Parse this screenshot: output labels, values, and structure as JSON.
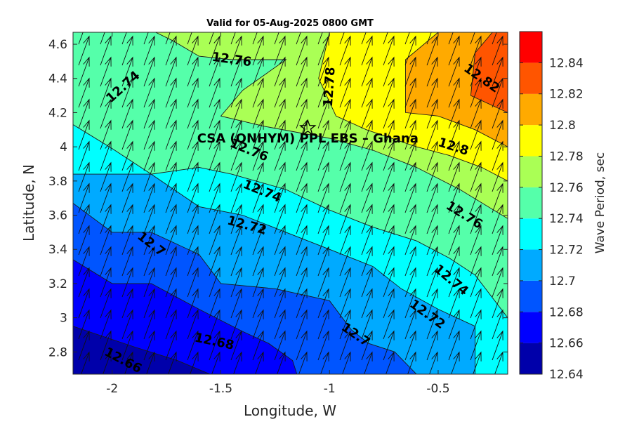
{
  "chart_data": {
    "type": "filled-contour with wave-direction vectors",
    "title": "Valid for 05-Aug-2025 0800 GMT",
    "xlabel": "Longitude, W",
    "ylabel": "Latitude, N",
    "xlim": [
      -2.18,
      -0.18
    ],
    "ylim": [
      2.67,
      4.67
    ],
    "xticks": [
      -2,
      -1.5,
      -1,
      -0.5
    ],
    "xtick_labels": [
      "-2",
      "-1.5",
      "-1",
      "-0.5"
    ],
    "yticks": [
      2.8,
      3.0,
      3.2,
      3.4,
      3.6,
      3.8,
      4.0,
      4.2,
      4.4,
      4.6
    ],
    "ytick_labels": [
      "2.8",
      "3",
      "3.2",
      "3.4",
      "3.6",
      "3.8",
      "4",
      "4.2",
      "4.4",
      "4.6"
    ],
    "colorbar": {
      "label": "Wave Period, sec",
      "min": 12.64,
      "max": 12.86,
      "levels": [
        12.64,
        12.66,
        12.68,
        12.7,
        12.72,
        12.74,
        12.76,
        12.78,
        12.8,
        12.82,
        12.84,
        12.86
      ],
      "tick_values": [
        12.64,
        12.66,
        12.68,
        12.7,
        12.72,
        12.74,
        12.76,
        12.78,
        12.8,
        12.82,
        12.84
      ],
      "tick_labels": [
        "12.64",
        "12.66",
        "12.68",
        "12.7",
        "12.72",
        "12.74",
        "12.76",
        "12.78",
        "12.8",
        "12.82",
        "12.84"
      ],
      "colors": [
        "#0000aa",
        "#0000ff",
        "#0055ff",
        "#00aaff",
        "#00ffff",
        "#55ffaa",
        "#aaff55",
        "#ffff00",
        "#ffaa00",
        "#ff5500",
        "#ff0000"
      ]
    },
    "contours": [
      {
        "level": 12.66,
        "points": [
          [
            -2.18,
            2.95
          ],
          [
            -1.9,
            2.83
          ],
          [
            -1.7,
            2.75
          ],
          [
            -1.55,
            2.67
          ]
        ]
      },
      {
        "level": 12.68,
        "points": [
          [
            -2.18,
            3.34
          ],
          [
            -2.0,
            3.2
          ],
          [
            -1.82,
            3.2
          ],
          [
            -1.6,
            3.05
          ],
          [
            -1.4,
            2.92
          ],
          [
            -1.28,
            2.85
          ],
          [
            -1.17,
            2.75
          ],
          [
            -1.15,
            2.67
          ]
        ]
      },
      {
        "level": 12.7,
        "points": [
          [
            -2.18,
            3.67
          ],
          [
            -2.0,
            3.5
          ],
          [
            -1.82,
            3.5
          ],
          [
            -1.6,
            3.37
          ],
          [
            -1.5,
            3.2
          ],
          [
            -1.25,
            3.17
          ],
          [
            -1.0,
            3.1
          ],
          [
            -0.9,
            2.93
          ],
          [
            -0.82,
            2.85
          ],
          [
            -0.7,
            2.8
          ],
          [
            -0.6,
            2.67
          ]
        ]
      },
      {
        "level": 12.72,
        "points": [
          [
            -2.18,
            3.84
          ],
          [
            -2.0,
            3.84
          ],
          [
            -1.82,
            3.84
          ],
          [
            -1.6,
            3.65
          ],
          [
            -1.4,
            3.6
          ],
          [
            -1.2,
            3.5
          ],
          [
            -1.0,
            3.4
          ],
          [
            -0.8,
            3.3
          ],
          [
            -0.67,
            3.17
          ],
          [
            -0.5,
            3.05
          ],
          [
            -0.33,
            2.95
          ],
          [
            -0.33,
            2.67
          ]
        ]
      },
      {
        "level": 12.74,
        "points": [
          [
            -2.18,
            4.13
          ],
          [
            -2.0,
            3.99
          ],
          [
            -1.82,
            3.84
          ],
          [
            -1.6,
            3.88
          ],
          [
            -1.45,
            3.84
          ],
          [
            -1.2,
            3.75
          ],
          [
            -1.0,
            3.63
          ],
          [
            -0.8,
            3.53
          ],
          [
            -0.6,
            3.45
          ],
          [
            -0.45,
            3.35
          ],
          [
            -0.33,
            3.25
          ],
          [
            -0.18,
            3.0
          ]
        ]
      },
      {
        "level": 12.76,
        "points": [
          [
            -1.8,
            4.67
          ],
          [
            -1.72,
            4.62
          ],
          [
            -1.6,
            4.53
          ],
          [
            -1.45,
            4.51
          ],
          [
            -1.2,
            4.51
          ],
          [
            -1.4,
            4.33
          ],
          [
            -1.5,
            4.18
          ],
          [
            -1.3,
            4.12
          ],
          [
            -1.0,
            4.05
          ],
          [
            -0.8,
            3.98
          ],
          [
            -0.6,
            3.88
          ],
          [
            -0.4,
            3.75
          ],
          [
            -0.18,
            3.58
          ]
        ]
      },
      {
        "level": 12.78,
        "points": [
          [
            -1.0,
            4.67
          ],
          [
            -1.05,
            4.4
          ],
          [
            -0.97,
            4.18
          ],
          [
            -0.83,
            4.1
          ],
          [
            -0.6,
            4.0
          ],
          [
            -0.45,
            3.95
          ],
          [
            -0.3,
            3.88
          ],
          [
            -0.18,
            3.8
          ]
        ]
      },
      {
        "level": 12.8,
        "points": [
          [
            -0.5,
            4.67
          ],
          [
            -0.65,
            4.51
          ],
          [
            -0.65,
            4.2
          ],
          [
            -0.5,
            4.18
          ],
          [
            -0.33,
            4.1
          ],
          [
            -0.18,
            4.0
          ]
        ]
      },
      {
        "level": 12.82,
        "points": [
          [
            -0.25,
            4.67
          ],
          [
            -0.33,
            4.55
          ],
          [
            -0.35,
            4.3
          ],
          [
            -0.18,
            4.2
          ]
        ]
      }
    ],
    "contour_labels": [
      {
        "text": "12.66",
        "x": -1.95,
        "y": 2.75,
        "angle": 28
      },
      {
        "text": "12.68",
        "x": -1.53,
        "y": 2.86,
        "angle": 12
      },
      {
        "text": "12.7",
        "x": -1.82,
        "y": 3.43,
        "angle": 38
      },
      {
        "text": "12.7",
        "x": -0.88,
        "y": 2.9,
        "angle": 35
      },
      {
        "text": "12.72",
        "x": -1.38,
        "y": 3.54,
        "angle": 15
      },
      {
        "text": "12.72",
        "x": -0.55,
        "y": 3.02,
        "angle": 36
      },
      {
        "text": "12.74",
        "x": -1.95,
        "y": 4.35,
        "angle": -42
      },
      {
        "text": "12.74",
        "x": -1.31,
        "y": 3.74,
        "angle": 22
      },
      {
        "text": "12.74",
        "x": -0.44,
        "y": 3.22,
        "angle": 40
      },
      {
        "text": "12.76",
        "x": -1.45,
        "y": 4.51,
        "angle": 8
      },
      {
        "text": "12.76",
        "x": -1.37,
        "y": 3.98,
        "angle": 22
      },
      {
        "text": "12.76",
        "x": -0.38,
        "y": 3.6,
        "angle": 32
      },
      {
        "text": "12.78",
        "x": -1.0,
        "y": 4.35,
        "angle": -86
      },
      {
        "text": "12.8",
        "x": -0.43,
        "y": 4.0,
        "angle": 18
      },
      {
        "text": "12.82",
        "x": -0.3,
        "y": 4.4,
        "angle": 35
      }
    ],
    "vector_field": {
      "description": "wave direction arrows",
      "direction_deg_from_north": 20,
      "x_range": [
        -2.18,
        -0.18
      ],
      "y_range": [
        2.67,
        4.67
      ]
    },
    "annotations": [
      {
        "text": "CSA (ONHYM) PPL EBS  – Ghana",
        "x": -1.1,
        "y": 4.05,
        "marker": "star",
        "marker_x": -1.1,
        "marker_y": 4.11
      }
    ]
  }
}
